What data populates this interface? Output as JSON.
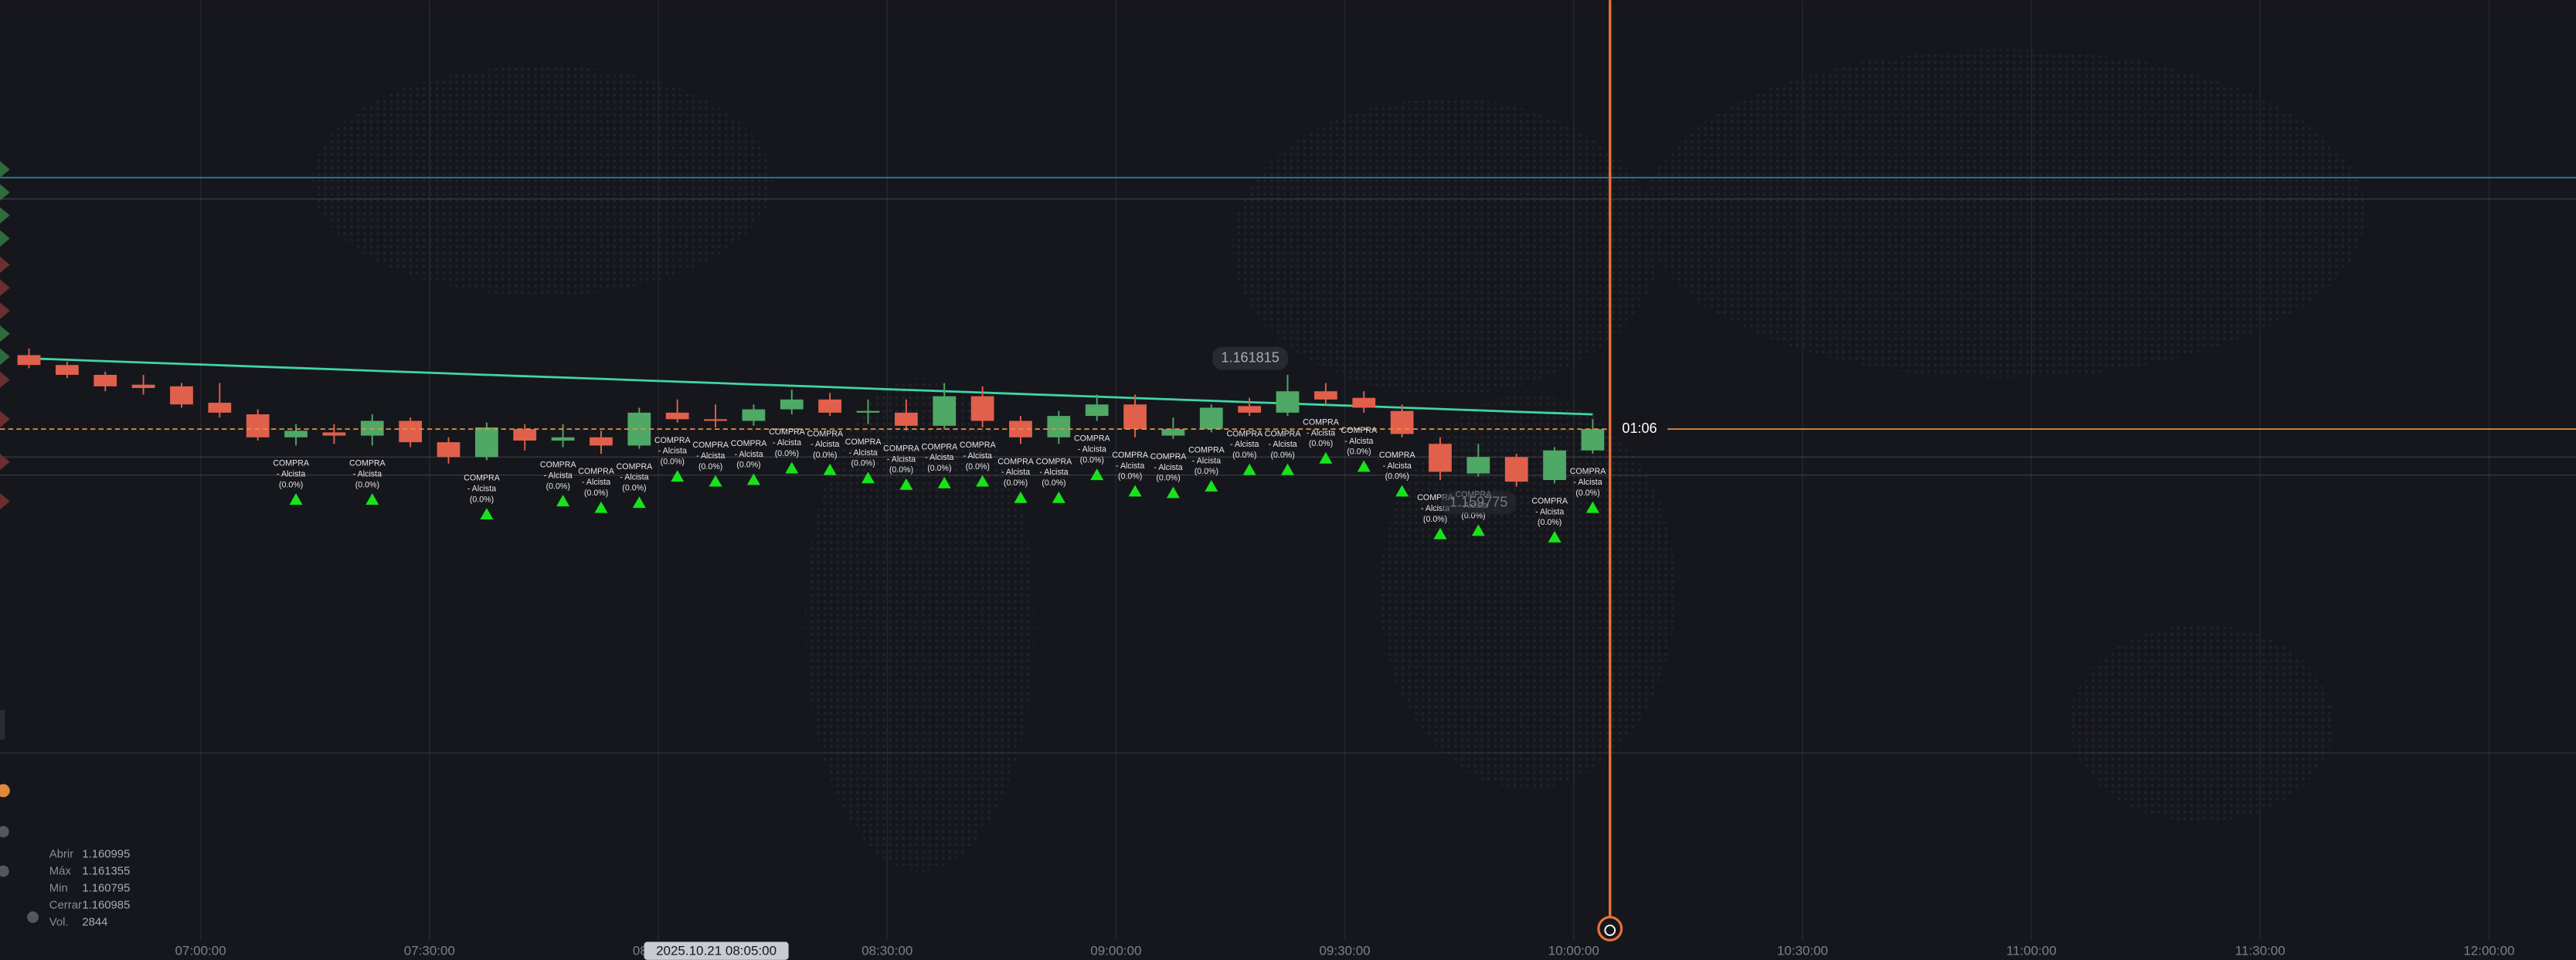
{
  "chart_data": {
    "type": "candlestick",
    "xlim": [
      393.7,
      731.4
    ],
    "ylim": [
      1.153324,
      1.166873
    ],
    "xticks": [
      {
        "value": 420,
        "label": "07:00:00"
      },
      {
        "value": 450,
        "label": "07:30:00"
      },
      {
        "value": 480,
        "label": "08:00:00"
      },
      {
        "value": 510,
        "label": "08:30:00"
      },
      {
        "value": 540,
        "label": "09:00:00"
      },
      {
        "value": 570,
        "label": "09:30:00"
      },
      {
        "value": 600,
        "label": "10:00:00"
      },
      {
        "value": 630,
        "label": "10:30:00"
      },
      {
        "value": 660,
        "label": "11:00:00"
      },
      {
        "value": 690,
        "label": "11:30:00"
      },
      {
        "value": 720,
        "label": "12:00:00"
      }
    ],
    "up_color": "#4fa865",
    "down_color": "#e0604c",
    "x": [
      397.5,
      402.5,
      407.5,
      412.5,
      417.5,
      422.5,
      427.5,
      432.5,
      437.5,
      442.5,
      447.5,
      452.5,
      457.5,
      462.5,
      467.5,
      472.5,
      477.5,
      482.5,
      487.5,
      492.5,
      497.5,
      502.5,
      507.5,
      512.5,
      517.5,
      522.5,
      527.5,
      532.5,
      537.5,
      542.5,
      547.5,
      552.5,
      557.5,
      562.5,
      567.5,
      572.5,
      577.5,
      582.5,
      587.5,
      592.5,
      597.5,
      602.5
    ],
    "open": [
      1.161861,
      1.161722,
      1.161583,
      1.161444,
      1.161421,
      1.161189,
      1.161026,
      1.160701,
      1.160771,
      1.160725,
      1.160933,
      1.160632,
      1.160423,
      1.160817,
      1.160655,
      1.160701,
      1.160585,
      1.161049,
      1.160957,
      1.160933,
      1.161096,
      1.161235,
      1.161049,
      1.161049,
      1.160864,
      1.161281,
      1.160933,
      1.160701,
      1.161003,
      1.161165,
      1.160725,
      1.160817,
      1.161142,
      1.161049,
      1.161351,
      1.161258,
      1.161073,
      1.160609,
      1.160191,
      1.160423,
      1.160098,
      1.160516
    ],
    "high": [
      1.161954,
      1.161769,
      1.161629,
      1.161583,
      1.161467,
      1.161467,
      1.161096,
      1.160887,
      1.160887,
      1.161026,
      1.16098,
      1.160701,
      1.16091,
      1.160887,
      1.160887,
      1.160794,
      1.161119,
      1.161235,
      1.161165,
      1.161165,
      1.161374,
      1.161328,
      1.161235,
      1.161235,
      1.161467,
      1.161421,
      1.161003,
      1.161073,
      1.161305,
      1.161305,
      1.16098,
      1.161165,
      1.161258,
      1.161583,
      1.161467,
      1.161351,
      1.161165,
      1.160701,
      1.160609,
      1.160469,
      1.160562,
      1.160957
    ],
    "low": [
      1.161676,
      1.161537,
      1.161351,
      1.161305,
      1.161119,
      1.16098,
      1.160655,
      1.160585,
      1.160609,
      1.160585,
      1.160562,
      1.16033,
      1.160377,
      1.160516,
      1.160562,
      1.160469,
      1.160539,
      1.16091,
      1.160841,
      1.160864,
      1.161026,
      1.161003,
      1.160887,
      1.160794,
      1.160817,
      1.160841,
      1.160609,
      1.160609,
      1.160933,
      1.160701,
      1.160678,
      1.160771,
      1.161003,
      1.161003,
      1.161165,
      1.161049,
      1.160701,
      1.160098,
      1.160145,
      1.160005,
      1.160052,
      1.160469
    ],
    "close": [
      1.161722,
      1.161583,
      1.161421,
      1.161397,
      1.161165,
      1.161049,
      1.160701,
      1.160794,
      1.160725,
      1.160933,
      1.160632,
      1.160423,
      1.160841,
      1.160655,
      1.160701,
      1.160585,
      1.161049,
      1.160957,
      1.160933,
      1.161096,
      1.161235,
      1.161049,
      1.161073,
      1.160864,
      1.161281,
      1.160933,
      1.160701,
      1.161003,
      1.161165,
      1.160817,
      1.160817,
      1.161119,
      1.161049,
      1.161351,
      1.161235,
      1.161119,
      1.160748,
      1.160214,
      1.160423,
      1.160075,
      1.160516,
      1.160817
    ],
    "average": {
      "color": "#3fd6a4",
      "values": [
        1.161815,
        1.161796,
        1.161776,
        1.161757,
        1.161738,
        1.161719,
        1.161699,
        1.16168,
        1.161661,
        1.161641,
        1.161622,
        1.161603,
        1.161583,
        1.161564,
        1.161545,
        1.161526,
        1.161506,
        1.161487,
        1.161468,
        1.161448,
        1.161429,
        1.16141,
        1.16139,
        1.161371,
        1.161352,
        1.161333,
        1.161313,
        1.161294,
        1.161275,
        1.161255,
        1.161236,
        1.161217,
        1.161197,
        1.161178,
        1.161159,
        1.16114,
        1.16112,
        1.161101,
        1.161082,
        1.161062,
        1.161043,
        1.161024
      ]
    },
    "signals": [
      {
        "x": 432.5,
        "lines": [
          "COMPRA",
          "- Alcista",
          "(0.0%)"
        ]
      },
      {
        "x": 442.5,
        "lines": [
          "COMPRA",
          "- Alcista",
          "(0.0%)"
        ]
      },
      {
        "x": 457.5,
        "lines": [
          "COMPRA",
          "- Alcista",
          "(0.0%)"
        ]
      },
      {
        "x": 467.5,
        "lines": [
          "COMPRA",
          "- Alcista",
          "(0.0%)"
        ]
      },
      {
        "x": 472.5,
        "lines": [
          "COMPRA",
          "- Alcista",
          "(0.0%)"
        ]
      },
      {
        "x": 477.5,
        "lines": [
          "COMPRA",
          "- Alcista",
          "(0.0%)"
        ]
      },
      {
        "x": 482.5,
        "lines": [
          "COMPRA",
          "- Alcista",
          "(0.0%)"
        ]
      },
      {
        "x": 487.5,
        "lines": [
          "COMPRA",
          "- Alcista",
          "(0.0%)"
        ]
      },
      {
        "x": 492.5,
        "lines": [
          "COMPRA",
          "- Alcista",
          "(0.0%)"
        ]
      },
      {
        "x": 497.5,
        "lines": [
          "COMPRA",
          "- Alcista",
          "(0.0%)"
        ]
      },
      {
        "x": 502.5,
        "lines": [
          "COMPRA",
          "- Alcista",
          "(0.0%)"
        ]
      },
      {
        "x": 507.5,
        "lines": [
          "COMPRA",
          "- Alcista",
          "(0.0%)"
        ]
      },
      {
        "x": 512.5,
        "lines": [
          "COMPRA",
          "- Alcista",
          "(0.0%)"
        ]
      },
      {
        "x": 517.5,
        "lines": [
          "COMPRA",
          "- Alcista",
          "(0.0%)"
        ]
      },
      {
        "x": 522.5,
        "lines": [
          "COMPRA",
          "- Alcista",
          "(0.0%)"
        ]
      },
      {
        "x": 527.5,
        "lines": [
          "COMPRA",
          "- Alcista",
          "(0.0%)"
        ]
      },
      {
        "x": 532.5,
        "lines": [
          "COMPRA",
          "- Alcista",
          "(0.0%)"
        ]
      },
      {
        "x": 537.5,
        "lines": [
          "COMPRA",
          "- Alcista",
          "(0.0%)"
        ]
      },
      {
        "x": 542.5,
        "lines": [
          "COMPRA",
          "- Alcista",
          "(0.0%)"
        ]
      },
      {
        "x": 547.5,
        "lines": [
          "COMPRA",
          "- Alcista",
          "(0.0%)"
        ]
      },
      {
        "x": 552.5,
        "lines": [
          "COMPRA",
          "- Alcista",
          "(0.0%)"
        ]
      },
      {
        "x": 557.5,
        "lines": [
          "COMPRA",
          "- Alcista",
          "(0.0%)"
        ]
      },
      {
        "x": 562.5,
        "lines": [
          "COMPRA",
          "- Alcista",
          "(0.0%)"
        ]
      },
      {
        "x": 567.5,
        "lines": [
          "COMPRA",
          "- Alcista",
          "(0.0%)"
        ]
      },
      {
        "x": 572.5,
        "lines": [
          "COMPRA",
          "- Alcista",
          "(0.0%)"
        ]
      },
      {
        "x": 577.5,
        "lines": [
          "COMPRA",
          "- Alcista",
          "(0.0%)"
        ]
      },
      {
        "x": 582.5,
        "lines": [
          "COMPRA",
          "- Alcista",
          "(0.0%)"
        ]
      },
      {
        "x": 587.5,
        "lines": [
          "COMPRA",
          "- Alcista",
          "(0.0%)"
        ]
      },
      {
        "x": 597.5,
        "lines": [
          "COMPRA",
          "- Alcista",
          "(0.0%)"
        ]
      },
      {
        "x": 602.5,
        "lines": [
          "COMPRA",
          "- Alcista",
          "(0.0%)"
        ]
      }
    ],
    "max_marker": 1.161815,
    "min_marker": 1.159775,
    "countdown": "01:06",
    "crosshair_time": "2025.10.21 08:05:00",
    "ohlc_panel": {
      "labels": [
        "Abrir",
        "Máx",
        "Min",
        "Cerrar",
        "Vol."
      ],
      "values": [
        1.160995,
        1.161355,
        1.160795,
        1.160985,
        2844
      ]
    }
  }
}
